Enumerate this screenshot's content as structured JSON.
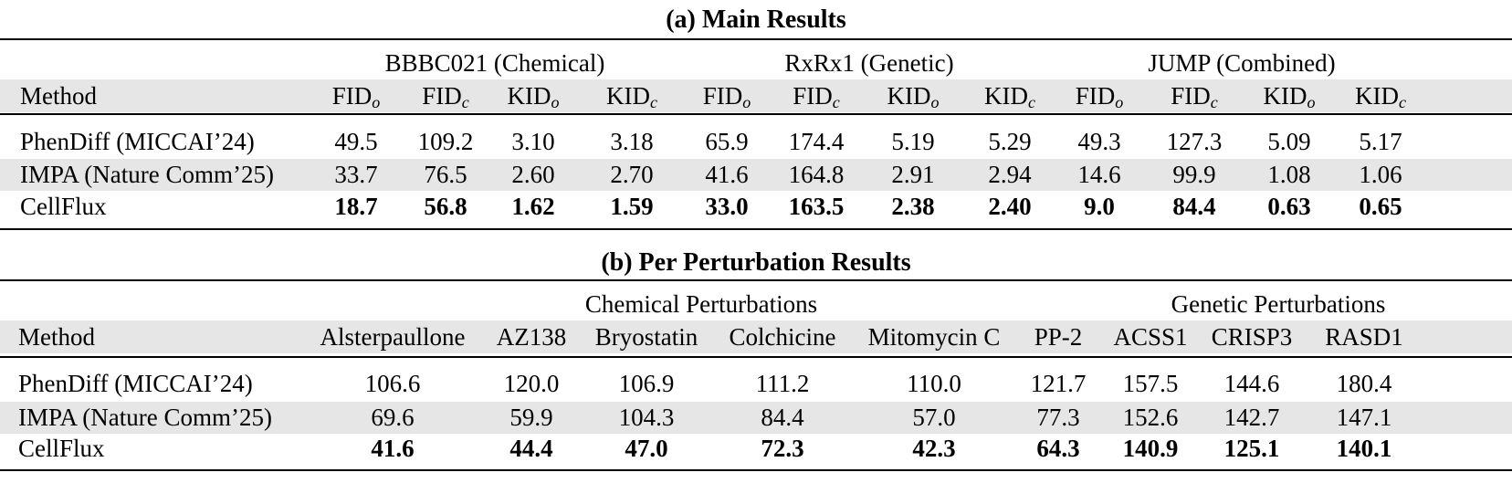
{
  "table_a": {
    "title": "(a) Main Results",
    "groups": [
      "BBBC021 (Chemical)",
      "RxRx1 (Genetic)",
      "JUMP (Combined)"
    ],
    "method_header": "Method",
    "metrics": [
      {
        "base": "FID",
        "sub": "o"
      },
      {
        "base": "FID",
        "sub": "c"
      },
      {
        "base": "KID",
        "sub": "o"
      },
      {
        "base": "KID",
        "sub": "c"
      },
      {
        "base": "FID",
        "sub": "o"
      },
      {
        "base": "FID",
        "sub": "c"
      },
      {
        "base": "KID",
        "sub": "o"
      },
      {
        "base": "KID",
        "sub": "c"
      },
      {
        "base": "FID",
        "sub": "o"
      },
      {
        "base": "FID",
        "sub": "c"
      },
      {
        "base": "KID",
        "sub": "o"
      },
      {
        "base": "KID",
        "sub": "c"
      }
    ],
    "rows": [
      {
        "method": "PhenDiff (MICCAI’24)",
        "values": [
          "49.5",
          "109.2",
          "3.10",
          "3.18",
          "65.9",
          "174.4",
          "5.19",
          "5.29",
          "49.3",
          "127.3",
          "5.09",
          "5.17"
        ],
        "bold": false
      },
      {
        "method": "IMPA (Nature Comm’25)",
        "values": [
          "33.7",
          "76.5",
          "2.60",
          "2.70",
          "41.6",
          "164.8",
          "2.91",
          "2.94",
          "14.6",
          "99.9",
          "1.08",
          "1.06"
        ],
        "bold": false
      },
      {
        "method": "CellFlux",
        "values": [
          "18.7",
          "56.8",
          "1.62",
          "1.59",
          "33.0",
          "163.5",
          "2.38",
          "2.40",
          "9.0",
          "84.4",
          "0.63",
          "0.65"
        ],
        "bold": true
      }
    ]
  },
  "table_b": {
    "title": "(b) Per Perturbation Results",
    "groups": [
      "Chemical Perturbations",
      "Genetic Perturbations"
    ],
    "method_header": "Method",
    "columns": [
      "Alsterpaullone",
      "AZ138",
      "Bryostatin",
      "Colchicine",
      "Mitomycin C",
      "PP-2",
      "ACSS1",
      "CRISP3",
      "RASD1"
    ],
    "rows": [
      {
        "method": "PhenDiff (MICCAI’24)",
        "values": [
          "106.6",
          "120.0",
          "106.9",
          "111.2",
          "110.0",
          "121.7",
          "157.5",
          "144.6",
          "180.4"
        ],
        "bold": false
      },
      {
        "method": "IMPA (Nature Comm’25)",
        "values": [
          "69.6",
          "59.9",
          "104.3",
          "84.4",
          "57.0",
          "77.3",
          "152.6",
          "142.7",
          "147.1"
        ],
        "bold": false
      },
      {
        "method": "CellFlux",
        "values": [
          "41.6",
          "44.4",
          "47.0",
          "72.3",
          "42.3",
          "64.3",
          "140.9",
          "125.1",
          "140.1"
        ],
        "bold": true
      }
    ]
  }
}
